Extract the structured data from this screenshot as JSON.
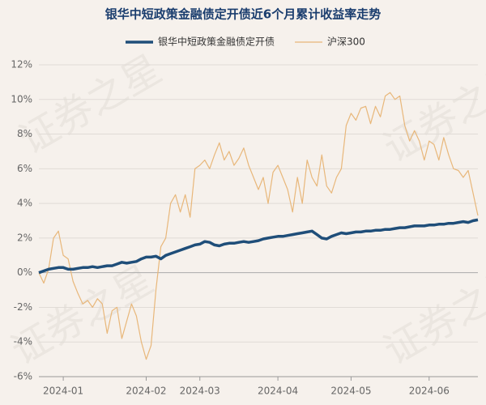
{
  "chart_data": {
    "type": "line",
    "title": "银华中短政策金融债定开债近6个月累计收益率走势",
    "watermark": "证券之星",
    "categories": [
      null,
      null,
      null,
      null,
      null,
      "2024-01",
      null,
      null,
      null,
      null,
      null,
      null,
      null,
      null,
      null,
      null,
      null,
      null,
      null,
      null,
      null,
      null,
      "2024-02",
      null,
      null,
      null,
      null,
      null,
      null,
      null,
      null,
      null,
      null,
      "2024-03",
      null,
      null,
      null,
      null,
      null,
      null,
      null,
      null,
      null,
      null,
      null,
      null,
      null,
      null,
      null,
      "2024-04",
      null,
      null,
      null,
      null,
      null,
      null,
      null,
      null,
      null,
      null,
      null,
      null,
      null,
      null,
      "2024-05",
      null,
      null,
      null,
      null,
      null,
      null,
      null,
      null,
      null,
      null,
      null,
      null,
      null,
      null,
      null,
      "2024-06",
      null,
      null,
      null,
      null,
      null,
      null,
      null,
      null,
      null,
      null
    ],
    "series": [
      {
        "name": "银华中短政策金融债定开债",
        "color": "#1f4e79",
        "width": 3.5,
        "values": [
          0,
          0.1,
          0.2,
          0.25,
          0.3,
          0.3,
          0.2,
          0.2,
          0.25,
          0.3,
          0.3,
          0.35,
          0.3,
          0.35,
          0.4,
          0.4,
          0.5,
          0.6,
          0.55,
          0.6,
          0.65,
          0.8,
          0.9,
          0.9,
          0.95,
          0.8,
          1.0,
          1.1,
          1.2,
          1.3,
          1.4,
          1.5,
          1.6,
          1.65,
          1.8,
          1.75,
          1.6,
          1.55,
          1.65,
          1.7,
          1.7,
          1.75,
          1.8,
          1.75,
          1.8,
          1.85,
          1.95,
          2.0,
          2.05,
          2.1,
          2.1,
          2.15,
          2.2,
          2.25,
          2.3,
          2.35,
          2.4,
          2.2,
          2.0,
          1.95,
          2.1,
          2.2,
          2.3,
          2.25,
          2.3,
          2.35,
          2.35,
          2.4,
          2.4,
          2.45,
          2.45,
          2.5,
          2.5,
          2.55,
          2.6,
          2.6,
          2.65,
          2.7,
          2.7,
          2.7,
          2.75,
          2.75,
          2.8,
          2.8,
          2.85,
          2.85,
          2.9,
          2.95,
          2.9,
          3.0,
          3.05
        ]
      },
      {
        "name": "沪深300",
        "color": "#e8b77a",
        "width": 1.2,
        "values": [
          0,
          -0.6,
          0.2,
          2.0,
          2.4,
          1.0,
          0.8,
          -0.5,
          -1.2,
          -1.8,
          -1.6,
          -2.0,
          -1.5,
          -1.8,
          -3.5,
          -2.2,
          -2.0,
          -3.8,
          -2.8,
          -1.8,
          -2.5,
          -4.0,
          -5.0,
          -4.2,
          -1.0,
          1.5,
          2.0,
          4.0,
          4.5,
          3.5,
          4.5,
          3.2,
          6.0,
          6.2,
          6.5,
          6.0,
          6.8,
          7.5,
          6.5,
          7.0,
          6.2,
          6.6,
          7.2,
          6.2,
          5.5,
          4.8,
          5.5,
          4.0,
          5.8,
          6.2,
          5.5,
          4.8,
          3.5,
          5.5,
          4.0,
          6.5,
          5.5,
          5.0,
          6.8,
          5.0,
          4.6,
          5.5,
          6.0,
          8.5,
          9.2,
          8.8,
          9.5,
          9.6,
          8.6,
          9.6,
          9.0,
          10.2,
          10.4,
          10.0,
          10.2,
          8.5,
          7.6,
          8.2,
          7.6,
          6.5,
          7.6,
          7.4,
          6.5,
          7.8,
          6.8,
          6.0,
          5.9,
          5.5,
          5.9,
          4.6,
          3.3
        ]
      }
    ],
    "ylim": [
      -6,
      12
    ],
    "yticks": [
      {
        "value": -6,
        "label": "-6%"
      },
      {
        "value": -4,
        "label": "-4%"
      },
      {
        "value": -2,
        "label": "-2%"
      },
      {
        "value": 0,
        "label": "0%"
      },
      {
        "value": 2,
        "label": "2%"
      },
      {
        "value": 4,
        "label": "4%"
      },
      {
        "value": 6,
        "label": "6%"
      },
      {
        "value": 8,
        "label": "8%"
      },
      {
        "value": 10,
        "label": "10%"
      },
      {
        "value": 12,
        "label": "12%"
      }
    ],
    "grid": true
  }
}
